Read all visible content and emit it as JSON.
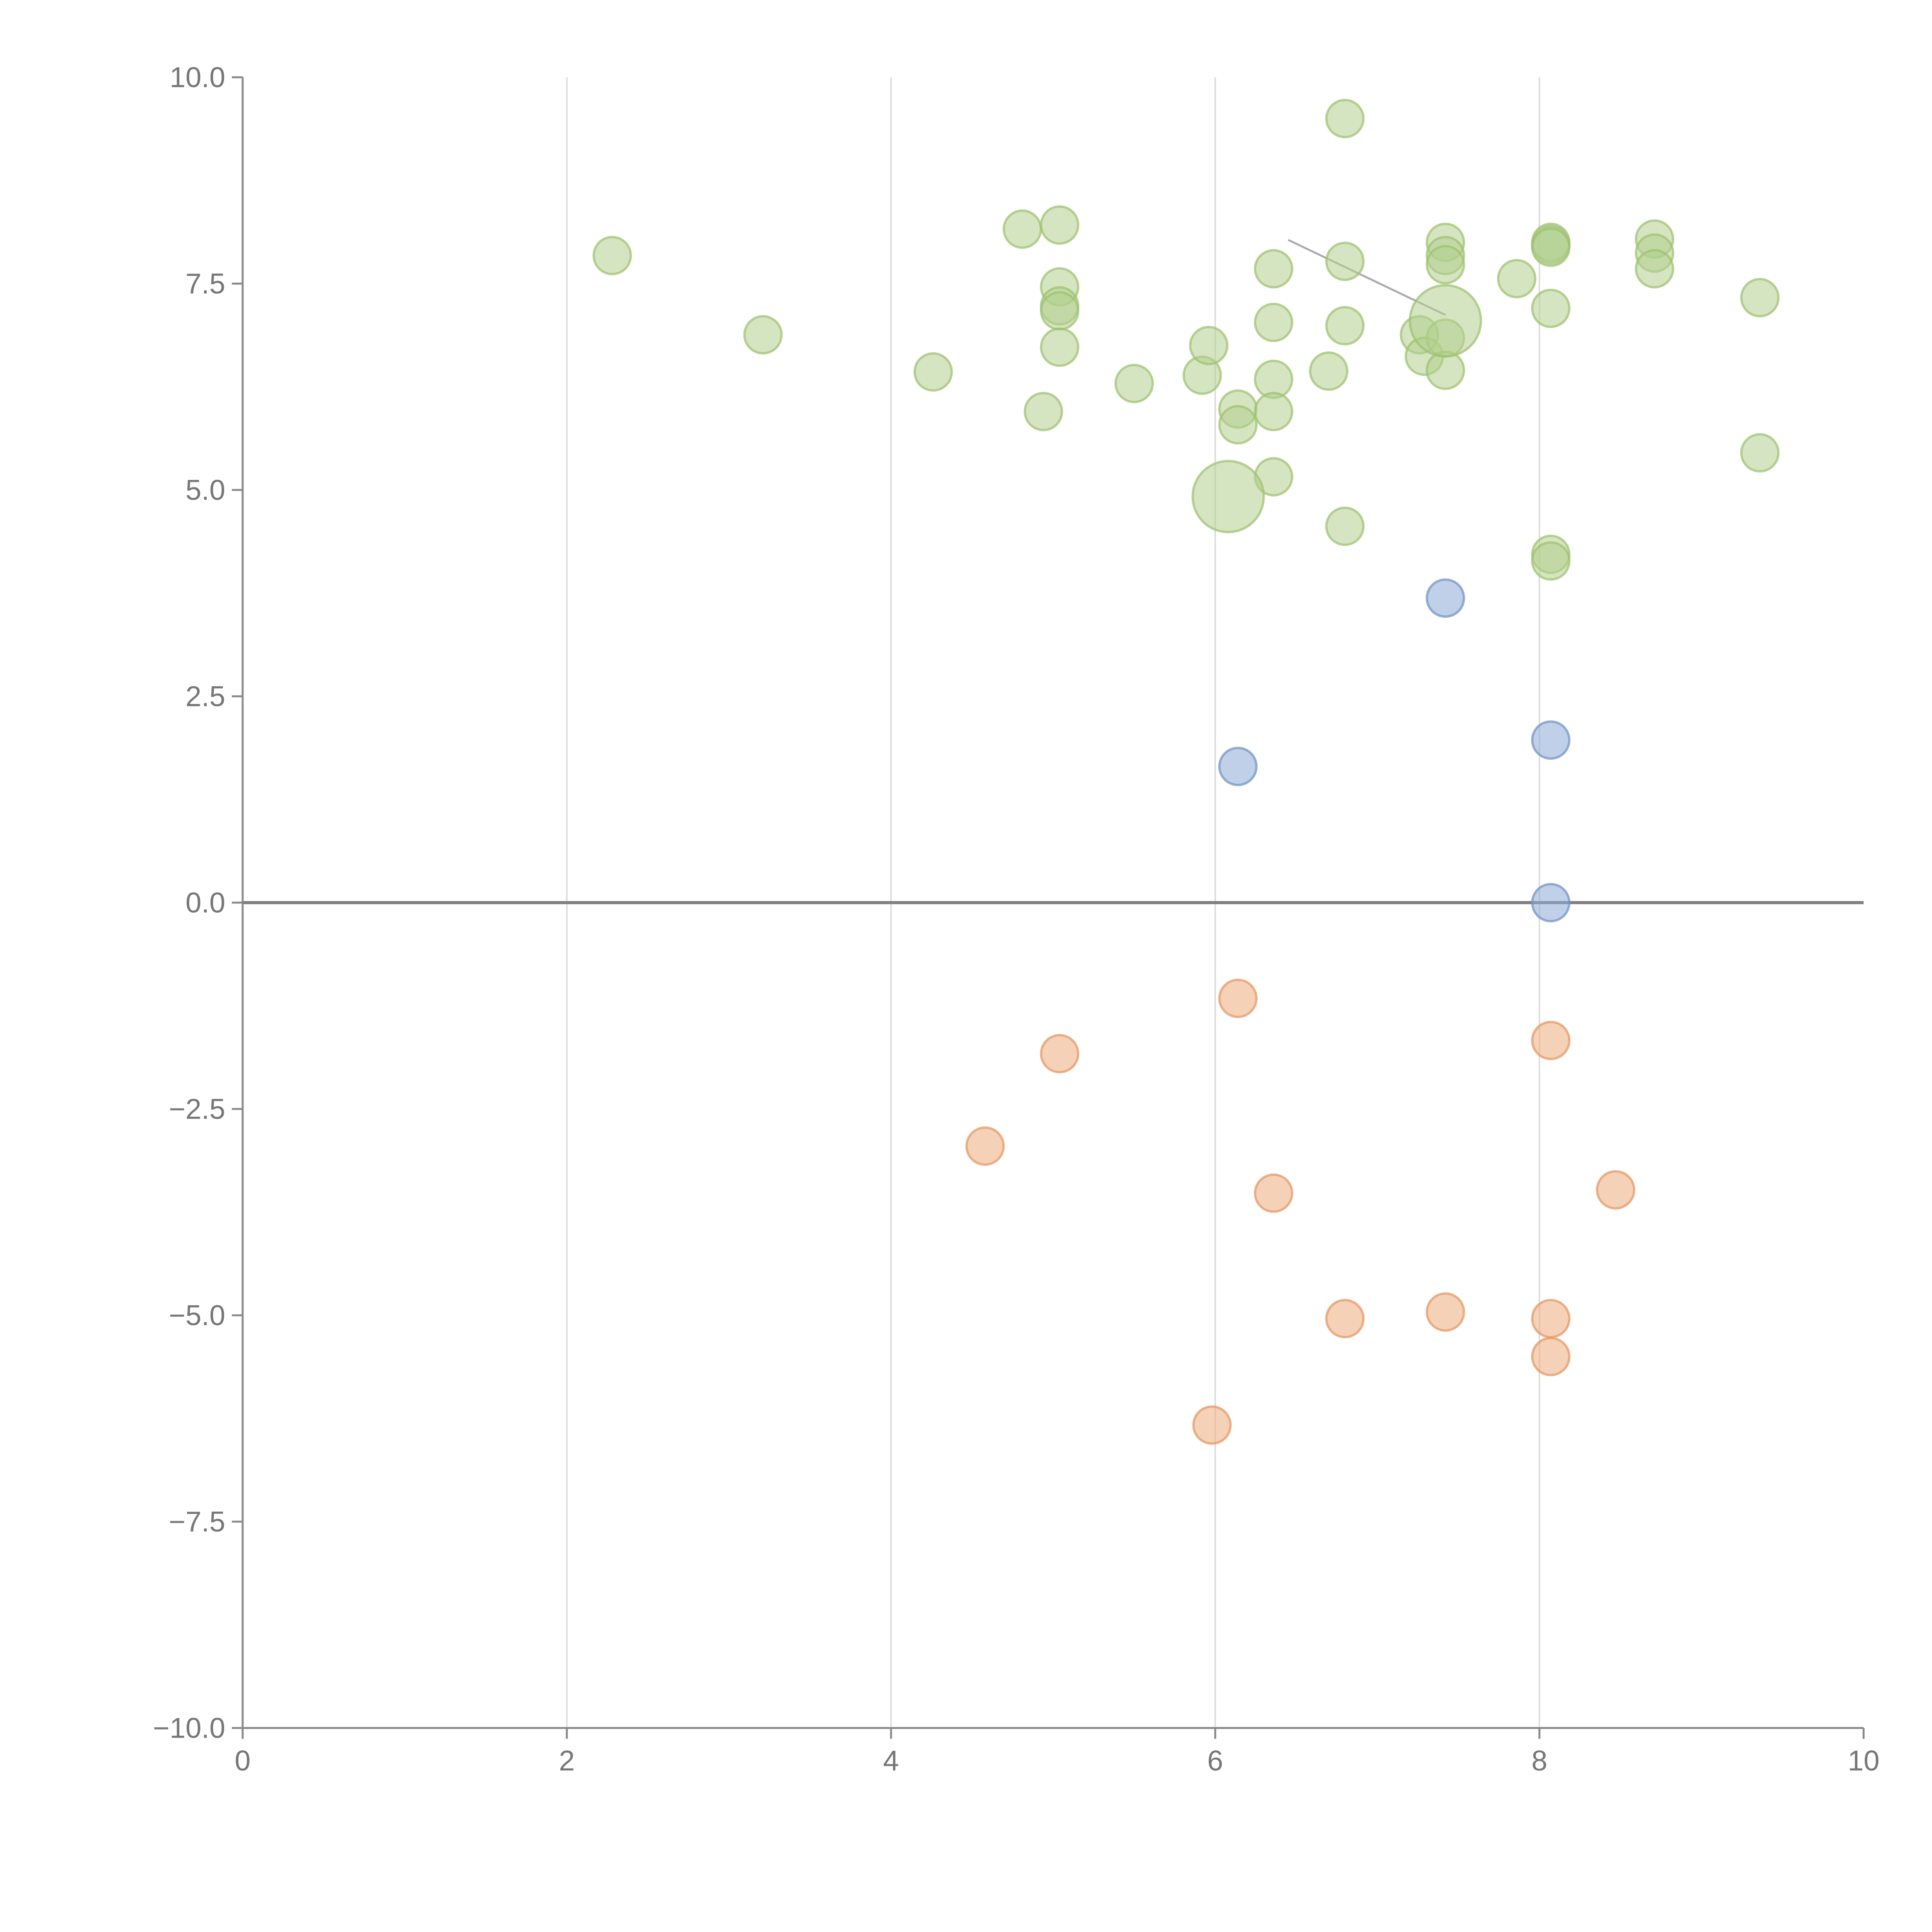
{
  "chart_data": {
    "type": "scatter",
    "title": "",
    "xlabel": "",
    "ylabel": "",
    "xlim": [
      0,
      10
    ],
    "ylim": [
      -10,
      10
    ],
    "x_ticks": [
      0,
      2,
      4,
      6,
      8,
      10
    ],
    "y_ticks": [
      -10,
      -7.5,
      -5,
      -2.5,
      0,
      2.5,
      5,
      7.5,
      10
    ],
    "x_tick_labels": [
      "0",
      "2",
      "4",
      "6",
      "8",
      "10"
    ],
    "y_tick_labels": [
      "−10.0",
      "−7.5",
      "−5.0",
      "−2.5",
      "0.0",
      "2.5",
      "5.0",
      "7.5",
      "10.0"
    ],
    "vertical_gridlines": true,
    "zero_line": true,
    "colors": {
      "axis": "#888888",
      "grid": "#dddddd",
      "zero_line": "#808080",
      "tick_text": "#777777",
      "connector": "#aaaaaa",
      "green_fill": "#b3d08e",
      "green_stroke": "#9cc06d",
      "blue_fill": "#8aa9d6",
      "blue_stroke": "#6f90c4",
      "orange_fill": "#ecac7c",
      "orange_stroke": "#e49560"
    },
    "series": [
      {
        "name": "green",
        "color_key": "green",
        "points": [
          {
            "x": 2.28,
            "y": 7.84
          },
          {
            "x": 3.21,
            "y": 6.88
          },
          {
            "x": 4.26,
            "y": 6.43
          },
          {
            "x": 4.81,
            "y": 8.16
          },
          {
            "x": 5.04,
            "y": 8.21
          },
          {
            "x": 5.04,
            "y": 7.46
          },
          {
            "x": 5.04,
            "y": 7.23
          },
          {
            "x": 5.04,
            "y": 7.17
          },
          {
            "x": 5.04,
            "y": 6.73
          },
          {
            "x": 4.94,
            "y": 5.95
          },
          {
            "x": 5.5,
            "y": 6.29
          },
          {
            "x": 5.92,
            "y": 6.39
          },
          {
            "x": 5.96,
            "y": 6.75
          },
          {
            "x": 6.14,
            "y": 5.98
          },
          {
            "x": 6.14,
            "y": 5.79
          },
          {
            "x": 6.36,
            "y": 7.68
          },
          {
            "x": 6.36,
            "y": 7.03
          },
          {
            "x": 6.36,
            "y": 6.34
          },
          {
            "x": 6.36,
            "y": 5.95
          },
          {
            "x": 6.36,
            "y": 5.16
          },
          {
            "x": 6.7,
            "y": 6.44
          },
          {
            "x": 6.8,
            "y": 9.5
          },
          {
            "x": 6.8,
            "y": 7.77
          },
          {
            "x": 6.8,
            "y": 6.99
          },
          {
            "x": 6.8,
            "y": 4.56
          },
          {
            "x": 7.26,
            "y": 6.88
          },
          {
            "x": 7.29,
            "y": 6.62
          },
          {
            "x": 7.42,
            "y": 8.0
          },
          {
            "x": 7.42,
            "y": 7.84
          },
          {
            "x": 7.42,
            "y": 7.73
          },
          {
            "x": 7.42,
            "y": 6.84
          },
          {
            "x": 7.42,
            "y": 6.45
          },
          {
            "x": 7.86,
            "y": 7.56
          },
          {
            "x": 8.07,
            "y": 8.0
          },
          {
            "x": 8.07,
            "y": 7.97
          },
          {
            "x": 8.07,
            "y": 7.94
          },
          {
            "x": 8.07,
            "y": 7.2
          },
          {
            "x": 8.07,
            "y": 4.22
          },
          {
            "x": 8.07,
            "y": 4.14
          },
          {
            "x": 8.71,
            "y": 8.04
          },
          {
            "x": 8.71,
            "y": 7.87
          },
          {
            "x": 8.71,
            "y": 7.68
          },
          {
            "x": 9.36,
            "y": 7.33
          },
          {
            "x": 9.36,
            "y": 5.45
          },
          {
            "x": 6.08,
            "y": 4.92,
            "size": "large"
          },
          {
            "x": 7.42,
            "y": 7.05,
            "size": "large"
          }
        ]
      },
      {
        "name": "blue",
        "color_key": "blue",
        "points": [
          {
            "x": 7.42,
            "y": 3.69
          },
          {
            "x": 8.07,
            "y": 1.97
          },
          {
            "x": 6.14,
            "y": 1.65
          },
          {
            "x": 8.07,
            "y": 0.0
          }
        ]
      },
      {
        "name": "orange",
        "color_key": "orange",
        "points": [
          {
            "x": 6.14,
            "y": -1.16
          },
          {
            "x": 5.04,
            "y": -1.83
          },
          {
            "x": 8.07,
            "y": -1.67
          },
          {
            "x": 4.58,
            "y": -2.95
          },
          {
            "x": 6.36,
            "y": -3.52
          },
          {
            "x": 8.47,
            "y": -3.48
          },
          {
            "x": 6.8,
            "y": -5.04
          },
          {
            "x": 7.42,
            "y": -4.96
          },
          {
            "x": 8.07,
            "y": -5.04
          },
          {
            "x": 8.07,
            "y": -5.5
          },
          {
            "x": 5.98,
            "y": -6.33
          }
        ]
      }
    ],
    "connector_lines": [
      {
        "x1": 6.45,
        "y1": 8.03,
        "x2": 7.42,
        "y2": 7.12
      }
    ]
  }
}
